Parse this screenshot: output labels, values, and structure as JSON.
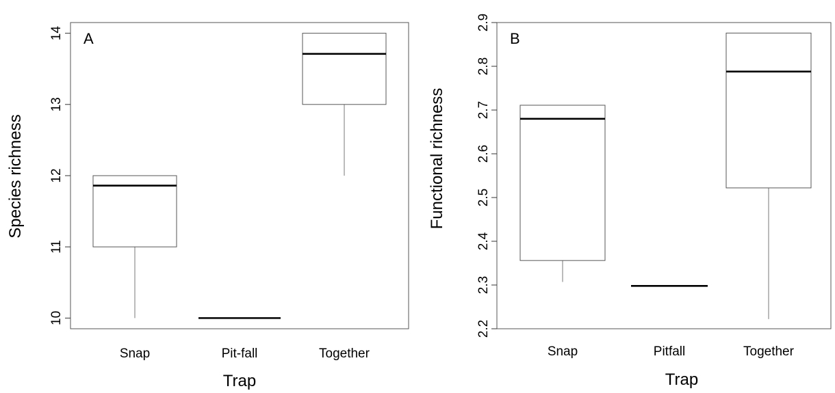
{
  "chart_data": [
    {
      "type": "box",
      "panel_label": "A",
      "xlabel": "Trap",
      "ylabel": "Species richness",
      "ylim": [
        9.85,
        14.15
      ],
      "yticks": [
        10,
        11,
        12,
        13,
        14
      ],
      "yticklabels": [
        "10",
        "11",
        "12",
        "13",
        "14"
      ],
      "categories": [
        "Snap",
        "Pit-fall",
        "Together"
      ],
      "boxes": [
        {
          "category": "Snap",
          "whisker_low": 10.0,
          "q1": 11.0,
          "median": 11.86,
          "q3": 12.0,
          "whisker_high": 12.0
        },
        {
          "category": "Pit-fall",
          "whisker_low": 10.0,
          "q1": 10.0,
          "median": 10.0,
          "q3": 10.0,
          "whisker_high": 10.0
        },
        {
          "category": "Together",
          "whisker_low": 12.0,
          "q1": 13.0,
          "median": 13.71,
          "q3": 14.0,
          "whisker_high": 14.0
        }
      ]
    },
    {
      "type": "box",
      "panel_label": "B",
      "xlabel": "Trap",
      "ylabel": "Functional richness",
      "ylim": [
        2.2,
        2.9
      ],
      "yticks": [
        2.2,
        2.3,
        2.4,
        2.5,
        2.6,
        2.7,
        2.8,
        2.9
      ],
      "yticklabels": [
        "2.2",
        "2.3",
        "2.4",
        "2.5",
        "2.6",
        "2.7",
        "2.8",
        "2.9"
      ],
      "categories": [
        "Snap",
        "Pitfall",
        "Together"
      ],
      "boxes": [
        {
          "category": "Snap",
          "whisker_low": 2.307,
          "q1": 2.356,
          "median": 2.68,
          "q3": 2.711,
          "whisker_high": 2.711
        },
        {
          "category": "Pitfall",
          "whisker_low": 2.298,
          "q1": 2.298,
          "median": 2.298,
          "q3": 2.298,
          "whisker_high": 2.298
        },
        {
          "category": "Together",
          "whisker_low": 2.222,
          "q1": 2.522,
          "median": 2.788,
          "q3": 2.876,
          "whisker_high": 2.876
        }
      ]
    }
  ]
}
